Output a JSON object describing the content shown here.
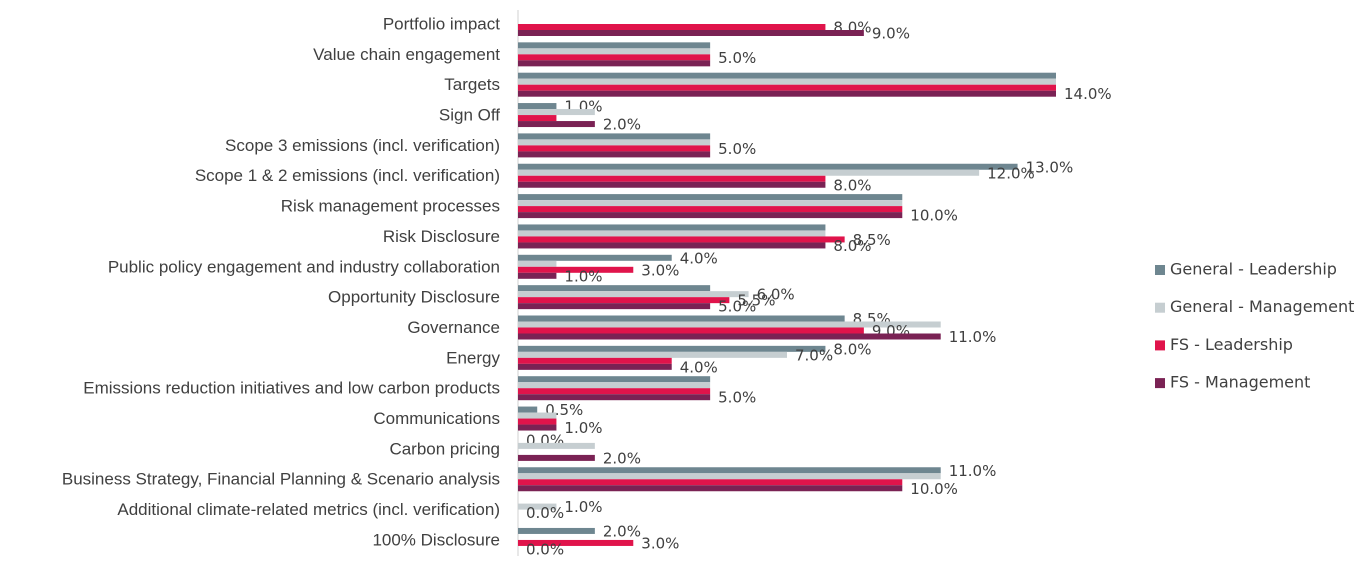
{
  "chart_data": {
    "type": "bar",
    "orientation": "horizontal",
    "categories": [
      "Portfolio impact",
      "Value chain engagement",
      "Targets",
      "Sign Off",
      "Scope 3 emissions (incl. verification)",
      "Scope 1 & 2 emissions (incl. verification)",
      "Risk management processes",
      "Risk Disclosure",
      "Public policy engagement and industry collaboration",
      "Opportunity Disclosure",
      "Governance",
      "Energy",
      "Emissions reduction initiatives and low carbon products",
      "Communications",
      "Carbon pricing",
      "Business Strategy, Financial Planning & Scenario analysis",
      "Additional climate-related metrics (incl. verification)",
      "100% Disclosure"
    ],
    "series": [
      {
        "name": "General - Leadership",
        "color": "#6e8690",
        "values": [
          0,
          5,
          14,
          1,
          5,
          13,
          10,
          8,
          4,
          5,
          8.5,
          8,
          5,
          0.5,
          0,
          11,
          0,
          2
        ],
        "value_labels": [
          null,
          null,
          null,
          "1.0%",
          null,
          "13.0%",
          null,
          null,
          "4.0%",
          null,
          "8.5%",
          "8.0%",
          null,
          "0.5%",
          "0.0%",
          "11.0%",
          null,
          "2.0%"
        ]
      },
      {
        "name": "General - Management",
        "color": "#c6ced1",
        "values": [
          0,
          5,
          14,
          2,
          5,
          12,
          10,
          8,
          1,
          6,
          11,
          7,
          5,
          1,
          2,
          11,
          1,
          0
        ],
        "value_labels": [
          null,
          null,
          null,
          null,
          null,
          "12.0%",
          null,
          null,
          null,
          "6.0%",
          null,
          "7.0%",
          null,
          null,
          null,
          null,
          "1.0%",
          null
        ]
      },
      {
        "name": "FS - Leadership",
        "color": "#e0144b",
        "values": [
          8,
          5,
          14,
          1,
          5,
          8,
          10,
          8.5,
          3,
          5.5,
          9,
          4,
          5,
          1,
          0,
          10,
          0,
          3
        ],
        "value_labels": [
          "8.0%",
          "5.0%",
          null,
          null,
          "5.0%",
          null,
          null,
          "8.5%",
          "3.0%",
          "5.5%",
          "9.0%",
          null,
          null,
          null,
          null,
          null,
          "0.0%",
          "3.0%"
        ]
      },
      {
        "name": "FS - Management",
        "color": "#7a2254",
        "values": [
          9,
          5,
          14,
          2,
          5,
          8,
          10,
          8,
          1,
          5,
          11,
          4,
          5,
          1,
          2,
          10,
          0,
          0
        ],
        "value_labels": [
          "9.0%",
          null,
          "14.0%",
          "2.0%",
          null,
          "8.0%",
          "10.0%",
          "8.0%",
          "1.0%",
          "5.0%",
          "11.0%",
          "4.0%",
          "5.0%",
          "1.0%",
          "2.0%",
          "10.0%",
          null,
          "0.0%"
        ]
      }
    ],
    "xlim": [
      0,
      14
    ],
    "legend": "right"
  }
}
